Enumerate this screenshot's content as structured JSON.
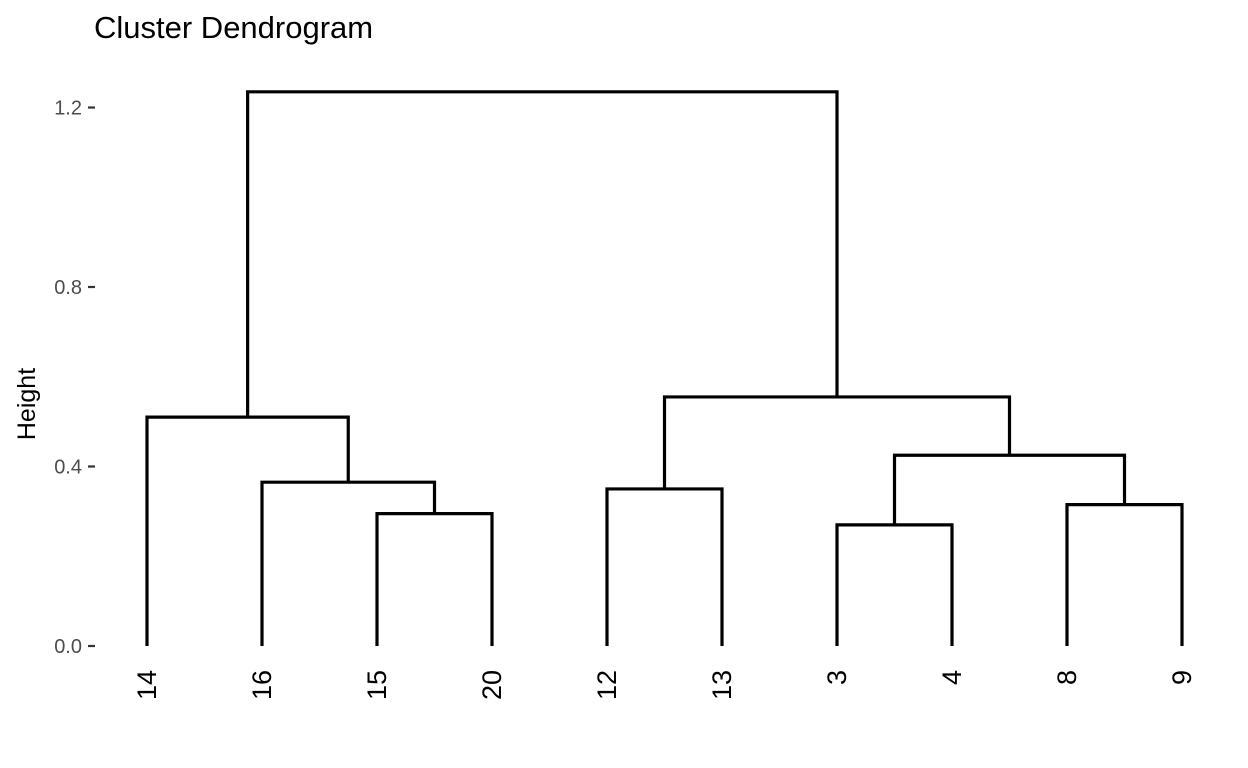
{
  "chart_data": {
    "type": "dendrogram",
    "title": "Cluster Dendrogram",
    "xlabel": "",
    "ylabel": "Height",
    "ylim": [
      0,
      1.24
    ],
    "y_ticks": [
      {
        "value": 0.0,
        "label": "0.0"
      },
      {
        "value": 0.4,
        "label": "0.4"
      },
      {
        "value": 0.8,
        "label": "0.8"
      },
      {
        "value": 1.2,
        "label": "1.2"
      }
    ],
    "leaves": [
      "14",
      "16",
      "15",
      "20",
      "12",
      "13",
      "3",
      "4",
      "8",
      "9"
    ],
    "merges": [
      {
        "left": "leaf:15",
        "right": "leaf:20",
        "height": 0.295
      },
      {
        "left": "leaf:16",
        "right": "merge:0",
        "height": 0.365
      },
      {
        "left": "leaf:14",
        "right": "merge:1",
        "height": 0.51
      },
      {
        "left": "leaf:12",
        "right": "leaf:13",
        "height": 0.35
      },
      {
        "left": "leaf:3",
        "right": "leaf:4",
        "height": 0.27
      },
      {
        "left": "leaf:8",
        "right": "leaf:9",
        "height": 0.315
      },
      {
        "left": "merge:4",
        "right": "merge:5",
        "height": 0.425
      },
      {
        "left": "merge:3",
        "right": "merge:6",
        "height": 0.555
      },
      {
        "left": "merge:2",
        "right": "merge:7",
        "height": 1.235
      }
    ],
    "grid": false,
    "legend": "none",
    "line_color": "#000000",
    "tick_label_color": "#4d4d4d"
  }
}
